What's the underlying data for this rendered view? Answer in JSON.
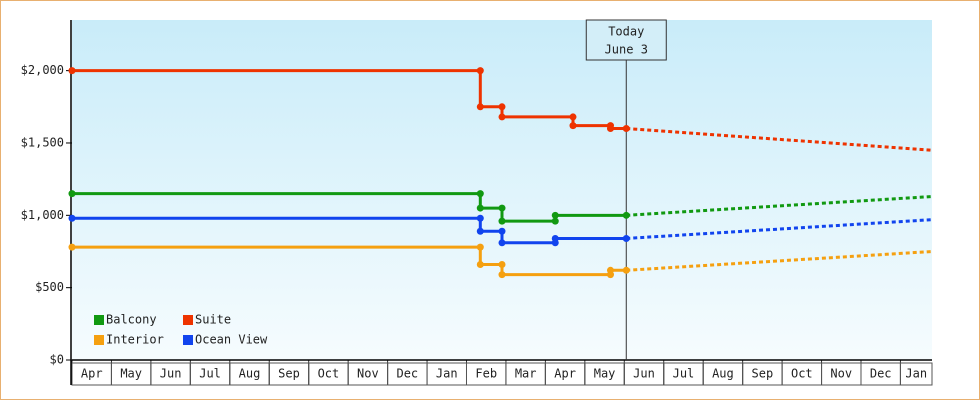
{
  "chart_data": {
    "type": "line",
    "step": true,
    "series": [
      {
        "name": "Balcony",
        "color": "#119911",
        "x": [
          0,
          10.35,
          10.35,
          10.9,
          10.9,
          12.25,
          12.25,
          14.05
        ],
        "values": [
          1150,
          1150,
          1050,
          1050,
          960,
          960,
          1000,
          1000
        ],
        "forecast_x": [
          14.05,
          21.8
        ],
        "forecast_values": [
          1000,
          1130
        ]
      },
      {
        "name": "Suite",
        "color": "#ee3300",
        "x": [
          0,
          10.35,
          10.35,
          10.9,
          10.9,
          12.7,
          12.7,
          13.65,
          13.65,
          14.05
        ],
        "values": [
          2000,
          2000,
          1750,
          1750,
          1680,
          1680,
          1620,
          1620,
          1600,
          1600
        ],
        "forecast_x": [
          14.05,
          21.8
        ],
        "forecast_values": [
          1600,
          1450
        ]
      },
      {
        "name": "Interior",
        "color": "#f5a010",
        "x": [
          0,
          10.35,
          10.35,
          10.9,
          10.9,
          13.65,
          13.65,
          14.05
        ],
        "values": [
          780,
          780,
          660,
          660,
          590,
          590,
          620,
          620
        ],
        "forecast_x": [
          14.05,
          21.8
        ],
        "forecast_values": [
          620,
          750
        ]
      },
      {
        "name": "Ocean View",
        "color": "#1144ee",
        "x": [
          0,
          10.35,
          10.35,
          10.9,
          10.9,
          12.25,
          12.25,
          14.05
        ],
        "values": [
          980,
          980,
          890,
          890,
          810,
          810,
          840,
          840
        ],
        "forecast_x": [
          14.05,
          21.8
        ],
        "forecast_values": [
          840,
          970
        ]
      }
    ],
    "xlim": [
      0,
      21.8
    ],
    "xticks": [
      {
        "value": 0,
        "label": "Apr"
      },
      {
        "value": 1,
        "label": "May"
      },
      {
        "value": 2,
        "label": "Jun"
      },
      {
        "value": 3,
        "label": "Jul"
      },
      {
        "value": 4,
        "label": "Aug"
      },
      {
        "value": 5,
        "label": "Sep"
      },
      {
        "value": 6,
        "label": "Oct"
      },
      {
        "value": 7,
        "label": "Nov"
      },
      {
        "value": 8,
        "label": "Dec"
      },
      {
        "value": 9,
        "label": "Jan"
      },
      {
        "value": 10,
        "label": "Feb"
      },
      {
        "value": 11,
        "label": "Mar"
      },
      {
        "value": 12,
        "label": "Apr"
      },
      {
        "value": 13,
        "label": "May"
      },
      {
        "value": 14,
        "label": "Jun"
      },
      {
        "value": 15,
        "label": "Jul"
      },
      {
        "value": 16,
        "label": "Aug"
      },
      {
        "value": 17,
        "label": "Sep"
      },
      {
        "value": 18,
        "label": "Oct"
      },
      {
        "value": 19,
        "label": "Nov"
      },
      {
        "value": 20,
        "label": "Dec"
      },
      {
        "value": 21,
        "label": "Jan"
      }
    ],
    "ylim": [
      0,
      2350
    ],
    "yticks": [
      {
        "value": 0,
        "label": "$0"
      },
      {
        "value": 500,
        "label": "$500"
      },
      {
        "value": 1000,
        "label": "$1,000"
      },
      {
        "value": 1500,
        "label": "$1,500"
      },
      {
        "value": 2000,
        "label": "$2,000"
      }
    ],
    "annotation": {
      "x": 14.05,
      "lines": [
        "Today",
        "June 3"
      ]
    },
    "legend": "lower left"
  }
}
